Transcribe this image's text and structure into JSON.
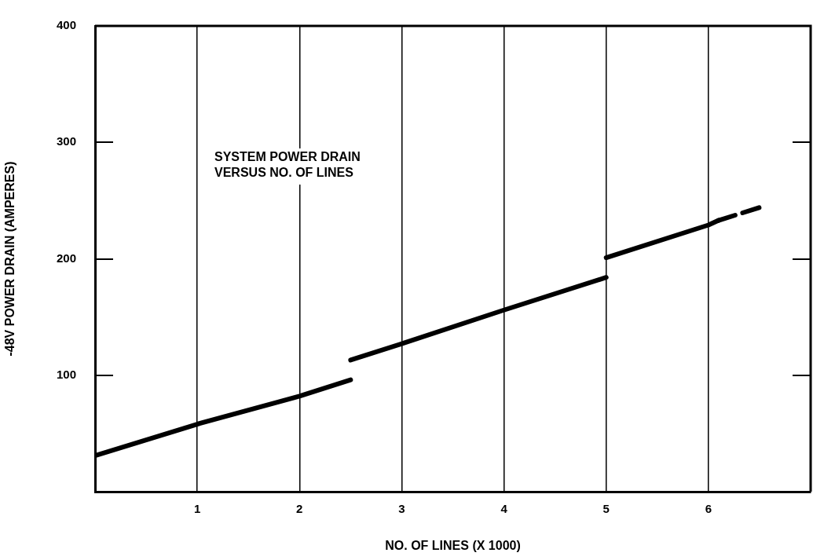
{
  "chart_data": {
    "type": "line",
    "title": "SYSTEM POWER DRAIN\nVERSUS NO. OF LINES",
    "xlabel": "NO. OF LINES (X 1000)",
    "ylabel": "-48V POWER DRAIN (AMPERES)",
    "xlim": [
      0,
      7
    ],
    "xticks": [
      1,
      2,
      3,
      4,
      5,
      6
    ],
    "ylim": [
      0,
      400
    ],
    "yticks": [
      100,
      200,
      300,
      400
    ],
    "grid": "x",
    "series": [
      {
        "color": "#000000",
        "x": [
          0,
          1,
          2,
          2.5
        ],
        "values": [
          31,
          58,
          82,
          96
        ]
      },
      {
        "color": "#000000",
        "x": [
          2.5,
          3,
          4,
          5
        ],
        "values": [
          113,
          127,
          156,
          184
        ]
      },
      {
        "color": "#000000",
        "x": [
          5,
          6,
          6.1
        ],
        "values": [
          201,
          229,
          233
        ]
      },
      {
        "color": "#000000",
        "x": [
          6.1,
          6.5
        ],
        "values": [
          233,
          244
        ],
        "line_style": "dashed"
      }
    ]
  }
}
